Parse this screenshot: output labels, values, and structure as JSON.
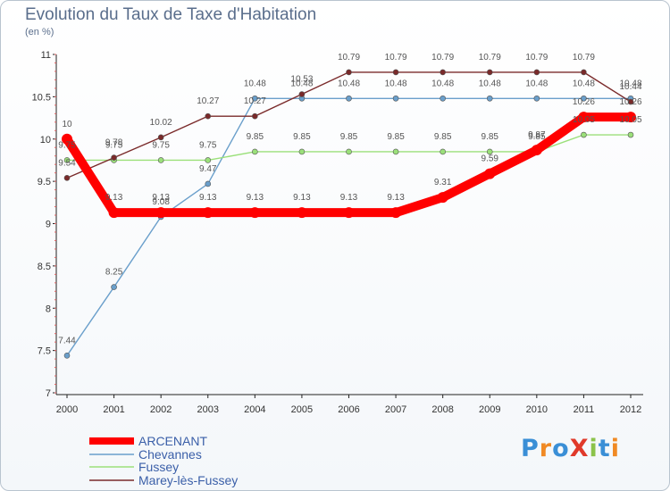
{
  "header": {
    "title": "Evolution du Taux de Taxe d'Habitation",
    "subtitle": "(en %)"
  },
  "logo": {
    "text": "ProXiti",
    "colors": [
      "#3a8fd6",
      "#f08a24",
      "#3a8fd6",
      "#e03a2a",
      "#8bc34a",
      "#3a8fd6",
      "#f08a24"
    ]
  },
  "chart_data": {
    "type": "line",
    "title": "Evolution du Taux de Taxe d'Habitation",
    "ylabel": "(en %)",
    "xlabel": "",
    "x": [
      "2000",
      "2001",
      "2002",
      "2003",
      "2004",
      "2005",
      "2006",
      "2007",
      "2008",
      "2009",
      "2010",
      "2011",
      "2012"
    ],
    "ylim": [
      7,
      11
    ],
    "yticks": [
      "7",
      "7.5",
      "8",
      "8.5",
      "9",
      "9.5",
      "10",
      "10.5",
      "11"
    ],
    "grid": false,
    "legend_position": "bottom-left",
    "series": [
      {
        "name": "ARCENANT",
        "color": "#ff0000",
        "values": [
          10,
          9.13,
          9.13,
          9.13,
          9.13,
          9.13,
          9.13,
          9.13,
          9.31,
          9.59,
          9.87,
          10.26,
          10.26
        ],
        "labels": [
          "10",
          "9.13",
          "9.13",
          "9.13",
          "9.13",
          "9.13",
          "9.13",
          "9.13",
          "9.31",
          "9.59",
          "9.87",
          "10.26",
          "10.26"
        ]
      },
      {
        "name": "Chevannes",
        "color": "#6a9fcb",
        "values": [
          7.44,
          8.25,
          9.08,
          9.47,
          10.48,
          10.48,
          10.48,
          10.48,
          10.48,
          10.48,
          10.48,
          10.48,
          10.48
        ],
        "labels": [
          "7.44",
          "8.25",
          "9.08",
          "9.47",
          "10.48",
          "10.48",
          "10.48",
          "10.48",
          "10.48",
          "10.48",
          "10.48",
          "10.48",
          "10.48"
        ]
      },
      {
        "name": "Fussey",
        "color": "#9be07a",
        "values": [
          9.75,
          9.75,
          9.75,
          9.75,
          9.85,
          9.85,
          9.85,
          9.85,
          9.85,
          9.85,
          9.85,
          10.05,
          10.05
        ],
        "labels": [
          "9.75",
          "9.75",
          "9.75",
          "9.75",
          "9.85",
          "9.85",
          "9.85",
          "9.85",
          "9.85",
          "9.85",
          "9.85",
          "10.05",
          "10.05"
        ]
      },
      {
        "name": "Marey-lès-Fussey",
        "color": "#7a2a2a",
        "values": [
          9.54,
          9.78,
          10.02,
          10.27,
          10.27,
          10.53,
          10.79,
          10.79,
          10.79,
          10.79,
          10.79,
          10.79,
          10.44
        ],
        "labels": [
          "9.54",
          "9.78",
          "10.02",
          "10.27",
          "10.27",
          "10.53",
          "10.79",
          "10.79",
          "10.79",
          "10.79",
          "10.79",
          "10.79",
          "10.44"
        ]
      }
    ]
  }
}
